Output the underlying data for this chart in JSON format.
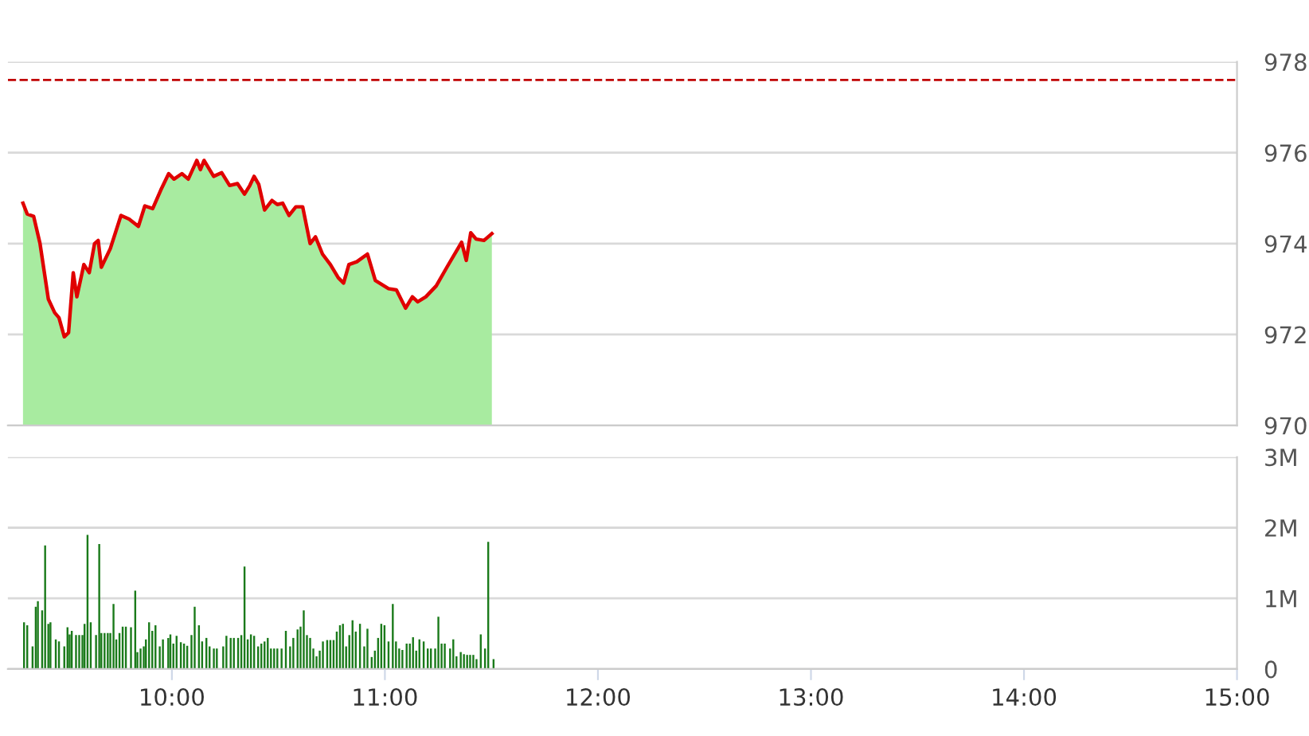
{
  "chart_data": [
    {
      "type": "area",
      "xlim": [
        9.23,
        15.0
      ],
      "ylim": [
        970,
        978
      ],
      "yticks": [
        970,
        972,
        974,
        976,
        978
      ],
      "tick_labels": "y",
      "grid": "y",
      "ref_lines": [
        {
          "axis": "y",
          "value": 977.6,
          "color": "#c00000",
          "line_style": "dashed"
        }
      ],
      "series": [
        {
          "type": "area",
          "color": "#a8eba0",
          "x": [
            9.301,
            9.321,
            9.351,
            9.381,
            9.42,
            9.45,
            9.47,
            9.495,
            9.515,
            9.537,
            9.554,
            9.587,
            9.612,
            9.637,
            9.654,
            9.669,
            9.711,
            9.761,
            9.799,
            9.843,
            9.873,
            9.91,
            9.948,
            9.985,
            10.01,
            10.047,
            10.077,
            10.117,
            10.134,
            10.151,
            10.196,
            10.234,
            10.271,
            10.308,
            10.341,
            10.366,
            10.386,
            10.408,
            10.435,
            10.47,
            10.495,
            10.52,
            10.55,
            10.582,
            10.614,
            10.649,
            10.674,
            10.707,
            10.744,
            10.781,
            10.806,
            10.831,
            10.868,
            10.918,
            10.955,
            11.017,
            11.054,
            11.097,
            11.129,
            11.154,
            11.192,
            11.241,
            11.291,
            11.36,
            11.382,
            11.403,
            11.428,
            11.465,
            11.502
          ],
          "values": [
            974.89,
            974.65,
            974.6,
            974.0,
            972.78,
            972.48,
            972.37,
            971.95,
            972.04,
            973.36,
            972.83,
            973.54,
            973.36,
            974.0,
            974.07,
            973.48,
            973.89,
            974.62,
            974.54,
            974.38,
            974.83,
            974.77,
            975.18,
            975.54,
            975.42,
            975.54,
            975.42,
            975.83,
            975.63,
            975.83,
            975.48,
            975.56,
            975.28,
            975.32,
            975.09,
            975.28,
            975.48,
            975.3,
            974.74,
            974.95,
            974.86,
            974.89,
            974.62,
            974.81,
            974.81,
            974.0,
            974.15,
            973.77,
            973.54,
            973.25,
            973.13,
            973.54,
            973.6,
            973.77,
            973.19,
            973.01,
            972.98,
            972.58,
            972.83,
            972.72,
            972.83,
            973.07,
            973.48,
            974.03,
            973.63,
            974.24,
            974.1,
            974.07,
            974.22
          ]
        },
        {
          "type": "line",
          "color": "#e00000",
          "x": [
            9.301,
            9.321,
            9.351,
            9.381,
            9.42,
            9.45,
            9.47,
            9.495,
            9.515,
            9.537,
            9.554,
            9.587,
            9.612,
            9.637,
            9.654,
            9.669,
            9.711,
            9.761,
            9.799,
            9.843,
            9.873,
            9.91,
            9.948,
            9.985,
            10.01,
            10.047,
            10.077,
            10.117,
            10.134,
            10.151,
            10.196,
            10.234,
            10.271,
            10.308,
            10.341,
            10.366,
            10.386,
            10.408,
            10.435,
            10.47,
            10.495,
            10.52,
            10.55,
            10.582,
            10.614,
            10.649,
            10.674,
            10.707,
            10.744,
            10.781,
            10.806,
            10.831,
            10.868,
            10.918,
            10.955,
            11.017,
            11.054,
            11.097,
            11.129,
            11.154,
            11.192,
            11.241,
            11.291,
            11.36,
            11.382,
            11.403,
            11.428,
            11.465,
            11.502
          ],
          "values": [
            974.89,
            974.65,
            974.6,
            974.0,
            972.78,
            972.48,
            972.37,
            971.95,
            972.04,
            973.36,
            972.83,
            973.54,
            973.36,
            974.0,
            974.07,
            973.48,
            973.89,
            974.62,
            974.54,
            974.38,
            974.83,
            974.77,
            975.18,
            975.54,
            975.42,
            975.54,
            975.42,
            975.83,
            975.63,
            975.83,
            975.48,
            975.56,
            975.28,
            975.32,
            975.09,
            975.28,
            975.48,
            975.3,
            974.74,
            974.95,
            974.86,
            974.89,
            974.62,
            974.81,
            974.81,
            974.0,
            974.15,
            973.77,
            973.54,
            973.25,
            973.13,
            973.54,
            973.6,
            973.77,
            973.19,
            973.01,
            972.98,
            972.58,
            972.83,
            972.72,
            972.83,
            973.07,
            973.48,
            974.03,
            973.63,
            974.24,
            974.1,
            974.07,
            974.22
          ]
        }
      ]
    },
    {
      "type": "bar",
      "xlim": [
        9.23,
        15.0
      ],
      "ylim": [
        0,
        3
      ],
      "yticks": [
        0,
        {
          "value": 1,
          "label": "1M"
        },
        {
          "value": 2,
          "label": "2M"
        },
        {
          "value": 3,
          "label": "3M"
        }
      ],
      "xticks": [
        {
          "value": 10,
          "label": "10:00"
        },
        {
          "value": 11,
          "label": "11:00"
        },
        {
          "value": 12,
          "label": "12:00"
        },
        {
          "value": 13,
          "label": "13:00"
        },
        {
          "value": 14,
          "label": "14:00"
        },
        {
          "value": 15,
          "label": "15:00"
        }
      ],
      "grid": "y",
      "series": [
        {
          "color": "#1a7a1a",
          "x": [
            9.306,
            9.321,
            9.346,
            9.361,
            9.371,
            9.391,
            9.405,
            9.42,
            9.43,
            9.455,
            9.47,
            9.495,
            9.51,
            9.52,
            9.53,
            9.55,
            9.565,
            9.58,
            9.59,
            9.604,
            9.619,
            9.644,
            9.659,
            9.669,
            9.684,
            9.699,
            9.711,
            9.726,
            9.739,
            9.754,
            9.769,
            9.784,
            9.808,
            9.828,
            9.838,
            9.853,
            9.868,
            9.878,
            9.893,
            9.908,
            9.923,
            9.943,
            9.958,
            9.983,
            9.993,
            10.007,
            10.022,
            10.042,
            10.057,
            10.072,
            10.092,
            10.107,
            10.127,
            10.142,
            10.162,
            10.177,
            10.197,
            10.211,
            10.241,
            10.256,
            10.276,
            10.291,
            10.311,
            10.326,
            10.341,
            10.356,
            10.371,
            10.386,
            10.405,
            10.42,
            10.435,
            10.45,
            10.465,
            10.48,
            10.495,
            10.515,
            10.535,
            10.555,
            10.57,
            10.59,
            10.604,
            10.619,
            10.634,
            10.649,
            10.664,
            10.679,
            10.694,
            10.709,
            10.729,
            10.744,
            10.759,
            10.774,
            10.789,
            10.803,
            10.818,
            10.833,
            10.848,
            10.863,
            10.883,
            10.903,
            10.918,
            10.938,
            10.953,
            10.968,
            10.983,
            10.998,
            11.017,
            11.037,
            11.052,
            11.067,
            11.082,
            11.102,
            11.117,
            11.132,
            11.147,
            11.162,
            11.182,
            11.201,
            11.216,
            11.236,
            11.251,
            11.266,
            11.281,
            11.306,
            11.321,
            11.336,
            11.356,
            11.371,
            11.386,
            11.4,
            11.415,
            11.43,
            11.45,
            11.47,
            11.485,
            11.51
          ],
          "values": [
            0.66,
            0.62,
            0.32,
            0.88,
            0.96,
            0.83,
            1.75,
            0.64,
            0.66,
            0.42,
            0.39,
            0.32,
            0.59,
            0.49,
            0.54,
            0.48,
            0.48,
            0.48,
            0.64,
            1.9,
            0.66,
            0.48,
            1.77,
            0.51,
            0.51,
            0.51,
            0.51,
            0.92,
            0.42,
            0.51,
            0.6,
            0.6,
            0.59,
            1.11,
            0.24,
            0.29,
            0.32,
            0.42,
            0.66,
            0.54,
            0.62,
            0.32,
            0.42,
            0.44,
            0.49,
            0.36,
            0.47,
            0.38,
            0.36,
            0.33,
            0.48,
            0.88,
            0.62,
            0.39,
            0.44,
            0.32,
            0.29,
            0.29,
            0.32,
            0.47,
            0.44,
            0.44,
            0.44,
            0.48,
            1.45,
            0.42,
            0.49,
            0.47,
            0.32,
            0.36,
            0.39,
            0.44,
            0.29,
            0.29,
            0.29,
            0.29,
            0.54,
            0.32,
            0.44,
            0.56,
            0.6,
            0.83,
            0.48,
            0.44,
            0.29,
            0.18,
            0.26,
            0.39,
            0.41,
            0.41,
            0.41,
            0.53,
            0.62,
            0.64,
            0.32,
            0.48,
            0.69,
            0.53,
            0.64,
            0.32,
            0.57,
            0.17,
            0.26,
            0.44,
            0.64,
            0.62,
            0.39,
            0.92,
            0.39,
            0.29,
            0.27,
            0.36,
            0.36,
            0.45,
            0.26,
            0.42,
            0.39,
            0.29,
            0.29,
            0.29,
            0.74,
            0.36,
            0.36,
            0.29,
            0.42,
            0.18,
            0.24,
            0.21,
            0.2,
            0.2,
            0.2,
            0.14,
            0.49,
            0.29,
            1.8,
            0.14
          ]
        }
      ]
    }
  ]
}
